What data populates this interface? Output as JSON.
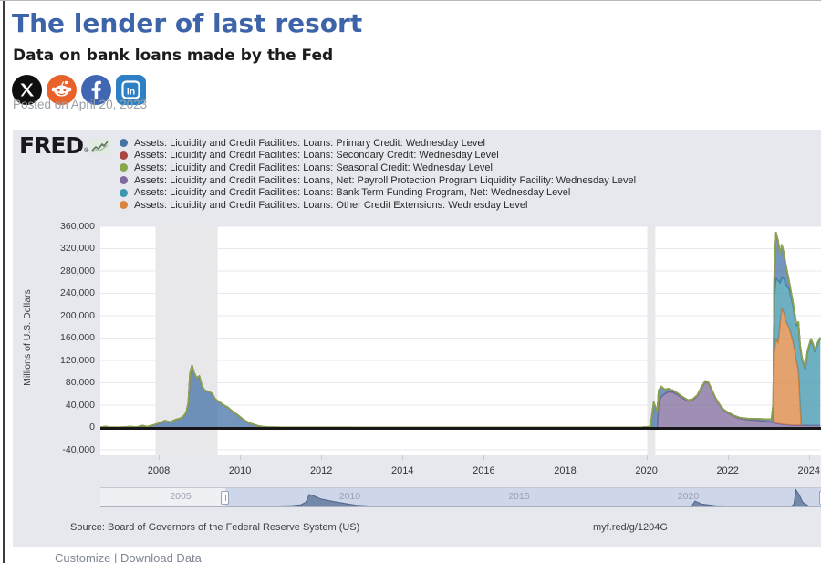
{
  "page": {
    "title": "The lender of last resort",
    "subtitle": "Data on bank loans made by the Fed",
    "posted": "Posted on April 20, 2023",
    "footer_links": "Customize | Download Data"
  },
  "social": [
    {
      "name": "x",
      "color": "#0f0f0f"
    },
    {
      "name": "reddit",
      "color": "#e8622a"
    },
    {
      "name": "facebook",
      "color": "#4267b2"
    },
    {
      "name": "linkedin",
      "color": "#2e80c4"
    }
  ],
  "fred": {
    "logo": "FRED",
    "reg": "®",
    "source": "Source: Board of Governors of the Federal Reserve System (US)",
    "short_url": "myf.red/g/1204G"
  },
  "legend": [
    {
      "label": "Assets: Liquidity and Credit Facilities: Loans: Primary Credit: Wednesday Level",
      "color": "#4572A7"
    },
    {
      "label": "Assets: Liquidity and Credit Facilities: Loans: Secondary Credit: Wednesday Level",
      "color": "#AA4643"
    },
    {
      "label": "Assets: Liquidity and Credit Facilities: Loans: Seasonal Credit: Wednesday Level",
      "color": "#89A54E"
    },
    {
      "label": "Assets: Liquidity and Credit Facilities: Loans, Net: Payroll Protection Program Liquidity Facility: Wednesday Level",
      "color": "#80699B"
    },
    {
      "label": "Assets: Liquidity and Credit Facilities: Loans: Bank Term Funding Program, Net: Wednesday Level",
      "color": "#3D96AE"
    },
    {
      "label": "Assets: Liquidity and Credit Facilities: Loans: Other Credit Extensions: Wednesday Level",
      "color": "#DB843D"
    }
  ],
  "chart_data": {
    "type": "area",
    "stacked": true,
    "ylabel": "Millions of U.S. Dollars",
    "x_range": [
      2006.57,
      2024.28
    ],
    "y_range": [
      -40000,
      360000
    ],
    "grid": true,
    "zero_line_color": "#17171a",
    "band_color": "#e8e8eb",
    "grid_color": "#e8e9ed",
    "recession_bands": [
      [
        2007.92,
        2009.45
      ],
      [
        2020.02,
        2020.22
      ]
    ],
    "x_ticks": [
      {
        "year": 2008,
        "label": "2008"
      },
      {
        "year": 2010,
        "label": "2010"
      },
      {
        "year": 2012,
        "label": "2012"
      },
      {
        "year": 2014,
        "label": "2014"
      },
      {
        "year": 2016,
        "label": "2016"
      },
      {
        "year": 2018,
        "label": "2018"
      },
      {
        "year": 2020,
        "label": "2020"
      },
      {
        "year": 2022,
        "label": "2022"
      },
      {
        "year": 2024,
        "label": "2024"
      }
    ],
    "y_ticks": [
      {
        "value": 360000,
        "label": "360,000"
      },
      {
        "value": 320000,
        "label": "320,000"
      },
      {
        "value": 280000,
        "label": "280,000"
      },
      {
        "value": 240000,
        "label": "240,000"
      },
      {
        "value": 200000,
        "label": "200,000"
      },
      {
        "value": 160000,
        "label": "160,000"
      },
      {
        "value": 120000,
        "label": "120,000"
      },
      {
        "value": 80000,
        "label": "80,000"
      },
      {
        "value": 40000,
        "label": "40,000"
      },
      {
        "value": 0,
        "label": "0"
      },
      {
        "value": -40000,
        "label": "-40,000"
      }
    ],
    "stack_order": [
      "PPP Liquidity Facility",
      "Other Credit Extensions",
      "Bank Term Funding Program",
      "Primary Credit",
      "Secondary Credit",
      "Seasonal Credit"
    ],
    "series": [
      {
        "name": "Primary Credit",
        "color": "#4572A7",
        "points": [
          [
            2006.57,
            300
          ],
          [
            2006.68,
            1800
          ],
          [
            2006.8,
            400
          ],
          [
            2007.05,
            300
          ],
          [
            2007.3,
            1400
          ],
          [
            2007.45,
            500
          ],
          [
            2007.6,
            3200
          ],
          [
            2007.72,
            1200
          ],
          [
            2007.9,
            5000
          ],
          [
            2008.05,
            8500
          ],
          [
            2008.15,
            12000
          ],
          [
            2008.28,
            9500
          ],
          [
            2008.42,
            14000
          ],
          [
            2008.52,
            16000
          ],
          [
            2008.6,
            19000
          ],
          [
            2008.68,
            27000
          ],
          [
            2008.73,
            45000
          ],
          [
            2008.77,
            97000
          ],
          [
            2008.82,
            111000
          ],
          [
            2008.87,
            98000
          ],
          [
            2008.93,
            89000
          ],
          [
            2009.0,
            92000
          ],
          [
            2009.07,
            73000
          ],
          [
            2009.14,
            66000
          ],
          [
            2009.24,
            64000
          ],
          [
            2009.32,
            60000
          ],
          [
            2009.38,
            52000
          ],
          [
            2009.44,
            48000
          ],
          [
            2009.54,
            43000
          ],
          [
            2009.62,
            39000
          ],
          [
            2009.7,
            36000
          ],
          [
            2009.78,
            31000
          ],
          [
            2009.87,
            26000
          ],
          [
            2009.95,
            22000
          ],
          [
            2010.05,
            16000
          ],
          [
            2010.15,
            11000
          ],
          [
            2010.25,
            7500
          ],
          [
            2010.35,
            5000
          ],
          [
            2010.45,
            2800
          ],
          [
            2010.55,
            1400
          ],
          [
            2010.7,
            600
          ],
          [
            2011,
            300
          ],
          [
            2013,
            200
          ],
          [
            2016,
            150
          ],
          [
            2019,
            250
          ],
          [
            2019.9,
            400
          ],
          [
            2020.1,
            1500
          ],
          [
            2020.18,
            45000
          ],
          [
            2020.25,
            32000
          ],
          [
            2020.33,
            22000
          ],
          [
            2020.45,
            8000
          ],
          [
            2020.6,
            4000
          ],
          [
            2020.8,
            2500
          ],
          [
            2021.2,
            1500
          ],
          [
            2021.8,
            1000
          ],
          [
            2022.3,
            1500
          ],
          [
            2022.8,
            3500
          ],
          [
            2023.0,
            4500
          ],
          [
            2023.08,
            6000
          ],
          [
            2023.13,
            40000
          ],
          [
            2023.16,
            60000
          ],
          [
            2023.19,
            82000
          ],
          [
            2023.24,
            71000
          ],
          [
            2023.29,
            52000
          ],
          [
            2023.33,
            59000
          ],
          [
            2023.42,
            37000
          ],
          [
            2023.51,
            14000
          ],
          [
            2023.6,
            6000
          ],
          [
            2023.7,
            3500
          ],
          [
            2023.8,
            3000
          ],
          [
            2024.28,
            2500
          ]
        ]
      },
      {
        "name": "Secondary Credit",
        "color": "#AA4643",
        "points": [
          [
            2006.57,
            40
          ],
          [
            2024.28,
            40
          ]
        ]
      },
      {
        "name": "Seasonal Credit",
        "color": "#89A54E",
        "points": [
          [
            2006.57,
            80
          ],
          [
            2007.6,
            300
          ],
          [
            2008.6,
            150
          ],
          [
            2024.28,
            60
          ]
        ]
      },
      {
        "name": "PPP Liquidity Facility",
        "color": "#80699B",
        "points": [
          [
            2020.27,
            0
          ],
          [
            2020.3,
            40000
          ],
          [
            2020.36,
            55000
          ],
          [
            2020.45,
            60000
          ],
          [
            2020.55,
            64000
          ],
          [
            2020.65,
            63000
          ],
          [
            2020.78,
            58000
          ],
          [
            2020.9,
            52000
          ],
          [
            2021.02,
            47000
          ],
          [
            2021.12,
            48000
          ],
          [
            2021.25,
            56000
          ],
          [
            2021.35,
            70000
          ],
          [
            2021.45,
            82000
          ],
          [
            2021.52,
            80000
          ],
          [
            2021.6,
            68000
          ],
          [
            2021.7,
            52000
          ],
          [
            2021.8,
            40000
          ],
          [
            2021.9,
            31000
          ],
          [
            2022.0,
            26000
          ],
          [
            2022.15,
            20000
          ],
          [
            2022.3,
            16000
          ],
          [
            2022.5,
            13500
          ],
          [
            2022.7,
            12500
          ],
          [
            2022.9,
            11000
          ],
          [
            2023.1,
            9000
          ],
          [
            2023.3,
            6000
          ],
          [
            2023.6,
            4000
          ],
          [
            2024.28,
            3500
          ]
        ]
      },
      {
        "name": "Bank Term Funding Program",
        "color": "#3D96AE",
        "points": [
          [
            2023.13,
            0
          ],
          [
            2023.15,
            100000
          ],
          [
            2023.19,
            107000
          ],
          [
            2023.24,
            112000
          ],
          [
            2023.29,
            74000
          ],
          [
            2023.33,
            54000
          ],
          [
            2023.42,
            66000
          ],
          [
            2023.51,
            69000
          ],
          [
            2023.6,
            64000
          ],
          [
            2023.69,
            62000
          ],
          [
            2023.78,
            101000
          ],
          [
            2023.81,
            127000
          ],
          [
            2023.83,
            118000
          ],
          [
            2023.87,
            108000
          ],
          [
            2023.91,
            100000
          ],
          [
            2023.96,
            128000
          ],
          [
            2024.0,
            140000
          ],
          [
            2024.05,
            152000
          ],
          [
            2024.1,
            143000
          ],
          [
            2024.14,
            132000
          ],
          [
            2024.18,
            140000
          ],
          [
            2024.23,
            148000
          ],
          [
            2024.28,
            155000
          ]
        ]
      },
      {
        "name": "Other Credit Extensions",
        "color": "#DB843D",
        "points": [
          [
            2023.12,
            0
          ],
          [
            2023.14,
            120000
          ],
          [
            2023.19,
            152000
          ],
          [
            2023.24,
            144000
          ],
          [
            2023.29,
            178000
          ],
          [
            2023.33,
            208000
          ],
          [
            2023.38,
            200000
          ],
          [
            2023.42,
            186000
          ],
          [
            2023.51,
            174000
          ],
          [
            2023.6,
            152000
          ],
          [
            2023.69,
            116000
          ],
          [
            2023.74,
            98000
          ],
          [
            2023.78,
            40000
          ],
          [
            2023.81,
            0
          ]
        ]
      }
    ],
    "navigator": {
      "labels": [
        {
          "year": 2005,
          "label": "2005"
        },
        {
          "year": 2010,
          "label": "2010"
        },
        {
          "year": 2015,
          "label": "2015"
        },
        {
          "year": 2020,
          "label": "2020"
        }
      ],
      "handles": [
        2006.32,
        2023.98
      ],
      "area_color": "#5e7699",
      "points": [
        [
          2002.7,
          300
        ],
        [
          2007.6,
          1500
        ],
        [
          2008.3,
          8000
        ],
        [
          2008.55,
          15000
        ],
        [
          2008.7,
          40000
        ],
        [
          2008.8,
          110000
        ],
        [
          2008.95,
          95000
        ],
        [
          2009.15,
          68000
        ],
        [
          2009.45,
          50000
        ],
        [
          2009.8,
          30000
        ],
        [
          2010.2,
          10000
        ],
        [
          2010.7,
          2000
        ],
        [
          2011.5,
          500
        ],
        [
          2019.6,
          500
        ],
        [
          2020.1,
          2000
        ],
        [
          2020.2,
          50000
        ],
        [
          2020.4,
          22000
        ],
        [
          2020.8,
          6000
        ],
        [
          2021.3,
          2000
        ],
        [
          2022.7,
          2000
        ],
        [
          2023.05,
          5000
        ],
        [
          2023.12,
          20000
        ],
        [
          2023.18,
          153000
        ],
        [
          2023.28,
          105000
        ],
        [
          2023.38,
          40000
        ],
        [
          2023.55,
          5000
        ],
        [
          2024.0,
          2500
        ],
        [
          2024.28,
          2000
        ]
      ]
    }
  }
}
